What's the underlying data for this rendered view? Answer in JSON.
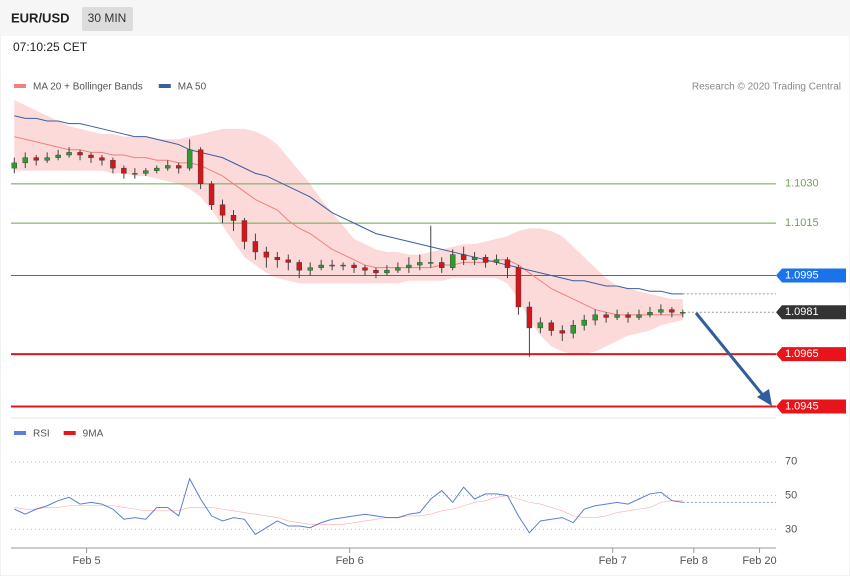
{
  "header": {
    "symbol": "EUR/USD",
    "interval": "30 MIN",
    "time": "07:10:25 CET"
  },
  "credit": "Research © 2020 Trading Central",
  "chart_data": [
    {
      "type": "candlestick",
      "xlim": [
        -0.3,
        69.5
      ],
      "ylim": [
        1.0941,
        1.1062
      ],
      "up_color": "#2e9b2e",
      "down_color": "#d0181c",
      "open": [
        1.1036,
        1.1038,
        1.104,
        1.1039,
        1.104,
        1.1041,
        1.1042,
        1.1041,
        1.104,
        1.1039,
        1.1036,
        1.1034,
        1.1034,
        1.1035,
        1.1036,
        1.1037,
        1.1036,
        1.1043,
        1.103,
        1.1022,
        1.1018,
        1.1016,
        1.1008,
        1.1004,
        1.1002,
        1.1001,
        1.1,
        1.0997,
        1.0998,
        1.0999,
        1.0999,
        1.0999,
        1.0998,
        1.0997,
        1.0996,
        1.0997,
        1.0998,
        1.0999,
        1.1,
        1.1,
        1.0998,
        1.1003,
        1.1001,
        1.1002,
        1.1,
        1.1001,
        1.0998,
        1.0983,
        1.0975,
        1.0977,
        1.0974,
        1.0973,
        1.0976,
        1.0978,
        1.098,
        1.0979,
        1.098,
        1.0979,
        1.098,
        1.0981,
        1.0982,
        1.0981
      ],
      "high": [
        1.104,
        1.1042,
        1.1041,
        1.1042,
        1.1043,
        1.1044,
        1.1043,
        1.1042,
        1.1041,
        1.104,
        1.1037,
        1.1036,
        1.1036,
        1.1037,
        1.1039,
        1.1038,
        1.1047,
        1.1044,
        1.1031,
        1.1024,
        1.102,
        1.1017,
        1.1011,
        1.1006,
        1.1004,
        1.1003,
        1.1001,
        1.1,
        1.1001,
        1.1001,
        1.1,
        1.1,
        1.0999,
        1.0998,
        1.0999,
        1.1,
        1.1002,
        1.1003,
        1.1014,
        1.1002,
        1.1005,
        1.1006,
        1.1004,
        1.1003,
        1.1003,
        1.1002,
        1.0999,
        1.0985,
        1.0979,
        1.0978,
        1.0976,
        1.0978,
        1.098,
        1.0982,
        1.0981,
        1.0982,
        1.0981,
        1.0982,
        1.0983,
        1.0984,
        1.0983,
        1.0982
      ],
      "low": [
        1.1034,
        1.1036,
        1.1037,
        1.1038,
        1.1039,
        1.104,
        1.1039,
        1.1038,
        1.1037,
        1.1034,
        1.1032,
        1.1032,
        1.1033,
        1.1034,
        1.1035,
        1.1034,
        1.1035,
        1.1028,
        1.102,
        1.1015,
        1.1012,
        1.1005,
        1.1001,
        1.0998,
        1.0998,
        1.0997,
        1.0994,
        1.0995,
        1.0997,
        1.0997,
        1.0997,
        1.0996,
        1.0995,
        1.0994,
        1.0995,
        1.0996,
        1.0996,
        1.0997,
        1.0998,
        1.0996,
        1.0997,
        1.0999,
        1.0999,
        1.0998,
        1.0999,
        1.0994,
        1.098,
        1.0964,
        1.0973,
        1.0972,
        1.097,
        1.0971,
        1.0974,
        1.0976,
        1.0977,
        1.0978,
        1.0977,
        1.0978,
        1.0979,
        1.098,
        1.0979,
        1.0979
      ],
      "close": [
        1.1038,
        1.104,
        1.1039,
        1.104,
        1.1041,
        1.1042,
        1.1041,
        1.104,
        1.1039,
        1.1036,
        1.1034,
        1.1034,
        1.1035,
        1.1036,
        1.1037,
        1.1036,
        1.1043,
        1.103,
        1.1022,
        1.1018,
        1.1016,
        1.1008,
        1.1004,
        1.1002,
        1.1001,
        1.1,
        1.0997,
        1.0998,
        1.0999,
        1.0999,
        1.0999,
        1.0998,
        1.0997,
        1.0996,
        1.0997,
        1.0998,
        1.0999,
        1.1,
        1.1,
        1.0998,
        1.1003,
        1.1001,
        1.1002,
        1.1,
        1.1001,
        1.0998,
        1.0983,
        1.0975,
        1.0977,
        1.0974,
        1.0973,
        1.0976,
        1.0978,
        1.098,
        1.0979,
        1.098,
        1.0979,
        1.098,
        1.0981,
        1.0982,
        1.0981,
        1.0981
      ],
      "overlays": [
        {
          "name": "MA 20 + Bollinger Bands",
          "color": "#f08080",
          "band_color": "#fdd3d3",
          "values": [
            1.1048,
            1.1047,
            1.1046,
            1.1045,
            1.1044,
            1.1043,
            1.1043,
            1.1042,
            1.1042,
            1.1041,
            1.1041,
            1.104,
            1.104,
            1.1039,
            1.1039,
            1.1038,
            1.1038,
            1.1037,
            1.1035,
            1.1033,
            1.103,
            1.1027,
            1.1024,
            1.1022,
            1.102,
            1.1016,
            1.1013,
            1.1011,
            1.1008,
            1.1005,
            1.1003,
            1.1001,
            1.0999,
            1.0998,
            1.0998,
            1.0998,
            1.0998,
            1.0998,
            1.0998,
            1.0999,
            1.0999,
            1.1,
            1.1,
            1.1,
            1.1001,
            1.1001,
            1.0999,
            1.0996,
            1.0993,
            1.099,
            1.0988,
            1.0986,
            1.0984,
            1.0982,
            1.0981,
            1.098,
            1.098,
            1.098,
            1.098,
            1.098,
            1.098,
            1.098
          ],
          "upper": [
            1.1062,
            1.106,
            1.1058,
            1.1056,
            1.1054,
            1.1052,
            1.1051,
            1.105,
            1.1049,
            1.1049,
            1.1048,
            1.1048,
            1.1048,
            1.1047,
            1.1047,
            1.1047,
            1.1048,
            1.1049,
            1.105,
            1.1051,
            1.1051,
            1.1051,
            1.105,
            1.1048,
            1.1045,
            1.104,
            1.1035,
            1.103,
            1.1024,
            1.1019,
            1.1014,
            1.1009,
            1.1007,
            1.1005,
            1.1004,
            1.1004,
            1.1003,
            1.1003,
            1.1004,
            1.1005,
            1.1006,
            1.1007,
            1.1007,
            1.1008,
            1.1009,
            1.101,
            1.1012,
            1.1013,
            1.1013,
            1.1012,
            1.101,
            1.1006,
            1.1002,
            1.0998,
            1.0994,
            1.0991,
            1.099,
            1.0989,
            1.0988,
            1.0987,
            1.0986,
            1.0986
          ],
          "lower": [
            1.1035,
            1.1035,
            1.1035,
            1.1035,
            1.1035,
            1.1035,
            1.1035,
            1.1035,
            1.1035,
            1.1034,
            1.1034,
            1.1033,
            1.1033,
            1.1032,
            1.1031,
            1.103,
            1.1028,
            1.1025,
            1.102,
            1.1014,
            1.1008,
            1.1002,
            1.0999,
            1.0996,
            1.0994,
            1.0993,
            1.0992,
            1.0992,
            1.0992,
            1.0992,
            1.0992,
            1.0992,
            1.0992,
            1.0992,
            1.0992,
            1.0992,
            1.0993,
            1.0993,
            1.0993,
            1.0993,
            1.0994,
            1.0994,
            1.0994,
            1.0994,
            1.0994,
            1.0992,
            1.0986,
            1.0978,
            1.0972,
            1.0968,
            1.0966,
            1.0965,
            1.0965,
            1.0966,
            1.0968,
            1.097,
            1.0972,
            1.0973,
            1.0974,
            1.0976,
            1.0977,
            1.0978
          ]
        },
        {
          "name": "MA 50",
          "color": "#3b5f9e",
          "values": [
            1.1056,
            1.1055,
            1.1055,
            1.1054,
            1.1054,
            1.1053,
            1.1053,
            1.1052,
            1.1051,
            1.105,
            1.1049,
            1.1048,
            1.1048,
            1.1047,
            1.1046,
            1.1045,
            1.1043,
            1.1042,
            1.1041,
            1.104,
            1.1038,
            1.1036,
            1.1034,
            1.1033,
            1.1031,
            1.1029,
            1.1027,
            1.1025,
            1.1022,
            1.1019,
            1.1017,
            1.1015,
            1.1013,
            1.1011,
            1.101,
            1.1009,
            1.1008,
            1.1007,
            1.1006,
            1.1005,
            1.1004,
            1.1003,
            1.1002,
            1.1001,
            1.1,
            1.0999,
            1.0998,
            1.0997,
            1.0996,
            1.0995,
            1.0994,
            1.0993,
            1.0993,
            1.0992,
            1.0991,
            1.0991,
            1.099,
            1.099,
            1.0989,
            1.0989,
            1.0988,
            1.0988
          ]
        }
      ],
      "levels": [
        {
          "value": 1.103,
          "label": "1.1030",
          "color": "#6aa84f",
          "style": "text"
        },
        {
          "value": 1.1015,
          "color": "#6aa84f",
          "style": "text"
        },
        {
          "value": 1.0995,
          "color": "#1a73e8",
          "style": "box"
        },
        {
          "value": 1.0981,
          "color": "#333333",
          "style": "box"
        },
        {
          "value": 1.0965,
          "color": "#e8141a",
          "style": "box"
        },
        {
          "value": 1.0945,
          "color": "#e8141a",
          "style": "box"
        }
      ]
    },
    {
      "type": "line",
      "xlim": [
        -0.3,
        69.5
      ],
      "ylim": [
        19,
        77
      ],
      "yticks": [
        30,
        50,
        70
      ],
      "xticks": [
        {
          "value": 6.6,
          "label": "Feb 5"
        },
        {
          "value": 30.6,
          "label": "Feb 6"
        },
        {
          "value": 54.6,
          "label": "Feb 7"
        },
        {
          "value": 62.0,
          "label": "Feb 8"
        },
        {
          "value": 68.0,
          "label": "Feb 20"
        }
      ],
      "series": [
        {
          "name": "RSI",
          "color": "#5b7fd6",
          "values": [
            42,
            39,
            42,
            44,
            47,
            49,
            45,
            46,
            45,
            42,
            36,
            37,
            36,
            43,
            43,
            38,
            60,
            48,
            38,
            35,
            37,
            36,
            27,
            31,
            35,
            32,
            32,
            31,
            34,
            36,
            37,
            38,
            39,
            38,
            37,
            37,
            39,
            40,
            48,
            53,
            46,
            55,
            48,
            51,
            51,
            50,
            38,
            28,
            35,
            36,
            37,
            34,
            42,
            44,
            45,
            46,
            45,
            48,
            51,
            52,
            47,
            46
          ]
        },
        {
          "name": "9MA",
          "color": "#e8141a",
          "values": [
            43,
            42,
            42,
            43,
            43,
            44,
            44,
            44,
            44,
            44,
            43,
            42,
            41,
            41,
            41,
            41,
            43,
            43,
            43,
            42,
            41,
            40,
            39,
            38,
            37,
            35,
            34,
            33,
            33,
            33,
            33,
            34,
            35,
            36,
            37,
            37,
            38,
            38,
            39,
            41,
            42,
            44,
            46,
            47,
            49,
            50,
            48,
            46,
            45,
            43,
            41,
            38,
            37,
            37,
            38,
            40,
            41,
            42,
            43,
            46,
            47,
            47
          ]
        }
      ]
    }
  ]
}
